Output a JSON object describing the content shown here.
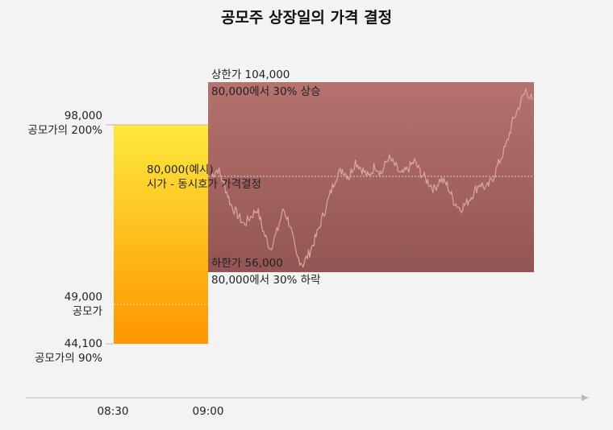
{
  "title": "공모주 상장일의 가격 결정",
  "axis": {
    "ticks": [
      "08:30",
      "09:00"
    ]
  },
  "labels": {
    "top_value": "98,000",
    "top_desc": "공모가의 200%",
    "ipo_value": "49,000",
    "ipo_desc": "공모가",
    "bottom_value": "44,100",
    "bottom_desc": "공모가의 90%",
    "open_value": "80,000(예시)",
    "open_desc": "시가 - 동시호가 가격결정",
    "upper_limit": "상한가 104,000",
    "upper_desc": "80,000에서 30% 상승",
    "lower_limit": "하한가 56,000",
    "lower_desc": "80,000에서 30% 하락"
  },
  "colors": {
    "background": "#f3f3f3",
    "preopen_top": "#fde93a",
    "preopen_bottom": "#ff9500",
    "band_top": "#b5726e",
    "band_bottom": "#935553",
    "price_line": "#d8a79c"
  },
  "chart_data": {
    "type": "area",
    "preopen_range": {
      "start": "08:30",
      "end": "09:00",
      "min": 44100,
      "max": 98000,
      "ipo_price": 49000
    },
    "open_price": 80000,
    "price_band": {
      "lower": 56000,
      "upper": 104000
    },
    "price_path": [
      80500,
      82000,
      78000,
      73000,
      70500,
      68000,
      70000,
      72000,
      66000,
      62000,
      66000,
      72000,
      68000,
      60000,
      58000,
      61000,
      65000,
      70000,
      75000,
      80000,
      82000,
      80000,
      84000,
      82000,
      80000,
      83000,
      81000,
      85000,
      83000,
      80500,
      82000,
      84000,
      81000,
      79000,
      77000,
      79500,
      78000,
      74000,
      72000,
      73500,
      76000,
      78500,
      77000,
      80000,
      84000,
      88000,
      94000,
      98000,
      102000,
      99500
    ]
  }
}
